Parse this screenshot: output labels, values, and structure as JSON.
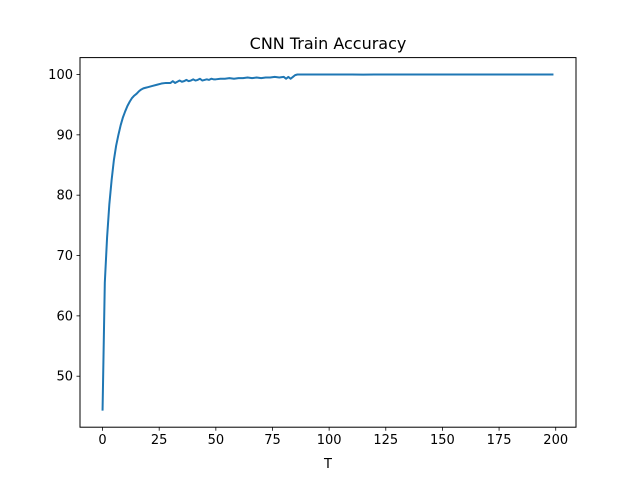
{
  "chart_data": {
    "type": "line",
    "title": "CNN Train Accuracy",
    "xlabel": "T",
    "ylabel": "",
    "xlim": [
      -9.95,
      208.95
    ],
    "ylim": [
      41.55,
      102.8
    ],
    "xticks": [
      0,
      25,
      50,
      75,
      100,
      125,
      150,
      175,
      200
    ],
    "yticks": [
      50,
      60,
      70,
      80,
      90,
      100
    ],
    "grid": false,
    "line_color": "#1f77b4",
    "series": [
      {
        "x": [
          0,
          1,
          2,
          3,
          4,
          5,
          6,
          7,
          8,
          9,
          10,
          11,
          12,
          13,
          14,
          15,
          16,
          17,
          18,
          19,
          20,
          22,
          24,
          26,
          28,
          30,
          31,
          32,
          33,
          34,
          35,
          36,
          37,
          38,
          39,
          40,
          41,
          42,
          43,
          44,
          45,
          46,
          47,
          48,
          49,
          50,
          52,
          54,
          56,
          58,
          60,
          62,
          64,
          66,
          68,
          70,
          72,
          74,
          76,
          78,
          80,
          81,
          82,
          83,
          84,
          85,
          86,
          88,
          90,
          95,
          100,
          110,
          115,
          120,
          130,
          140,
          150,
          160,
          170,
          180,
          190,
          199
        ],
        "y": [
          44.3,
          65.5,
          73.0,
          78.5,
          82.5,
          85.8,
          88.2,
          90.0,
          91.6,
          92.9,
          93.9,
          94.8,
          95.5,
          96.1,
          96.5,
          96.8,
          97.2,
          97.5,
          97.7,
          97.8,
          97.9,
          98.1,
          98.3,
          98.5,
          98.6,
          98.6,
          98.9,
          98.6,
          98.8,
          99.0,
          98.8,
          98.9,
          99.1,
          98.9,
          99.0,
          99.2,
          99.0,
          99.1,
          99.3,
          99.0,
          99.1,
          99.2,
          99.1,
          99.3,
          99.2,
          99.2,
          99.3,
          99.3,
          99.4,
          99.3,
          99.4,
          99.4,
          99.5,
          99.4,
          99.5,
          99.4,
          99.5,
          99.5,
          99.6,
          99.5,
          99.6,
          99.3,
          99.6,
          99.3,
          99.6,
          99.9,
          100.0,
          100.0,
          100.0,
          100.0,
          100.0,
          100.0,
          99.98,
          100.0,
          100.0,
          100.0,
          100.0,
          100.0,
          100.0,
          100.0,
          100.0,
          100.0
        ]
      }
    ]
  }
}
